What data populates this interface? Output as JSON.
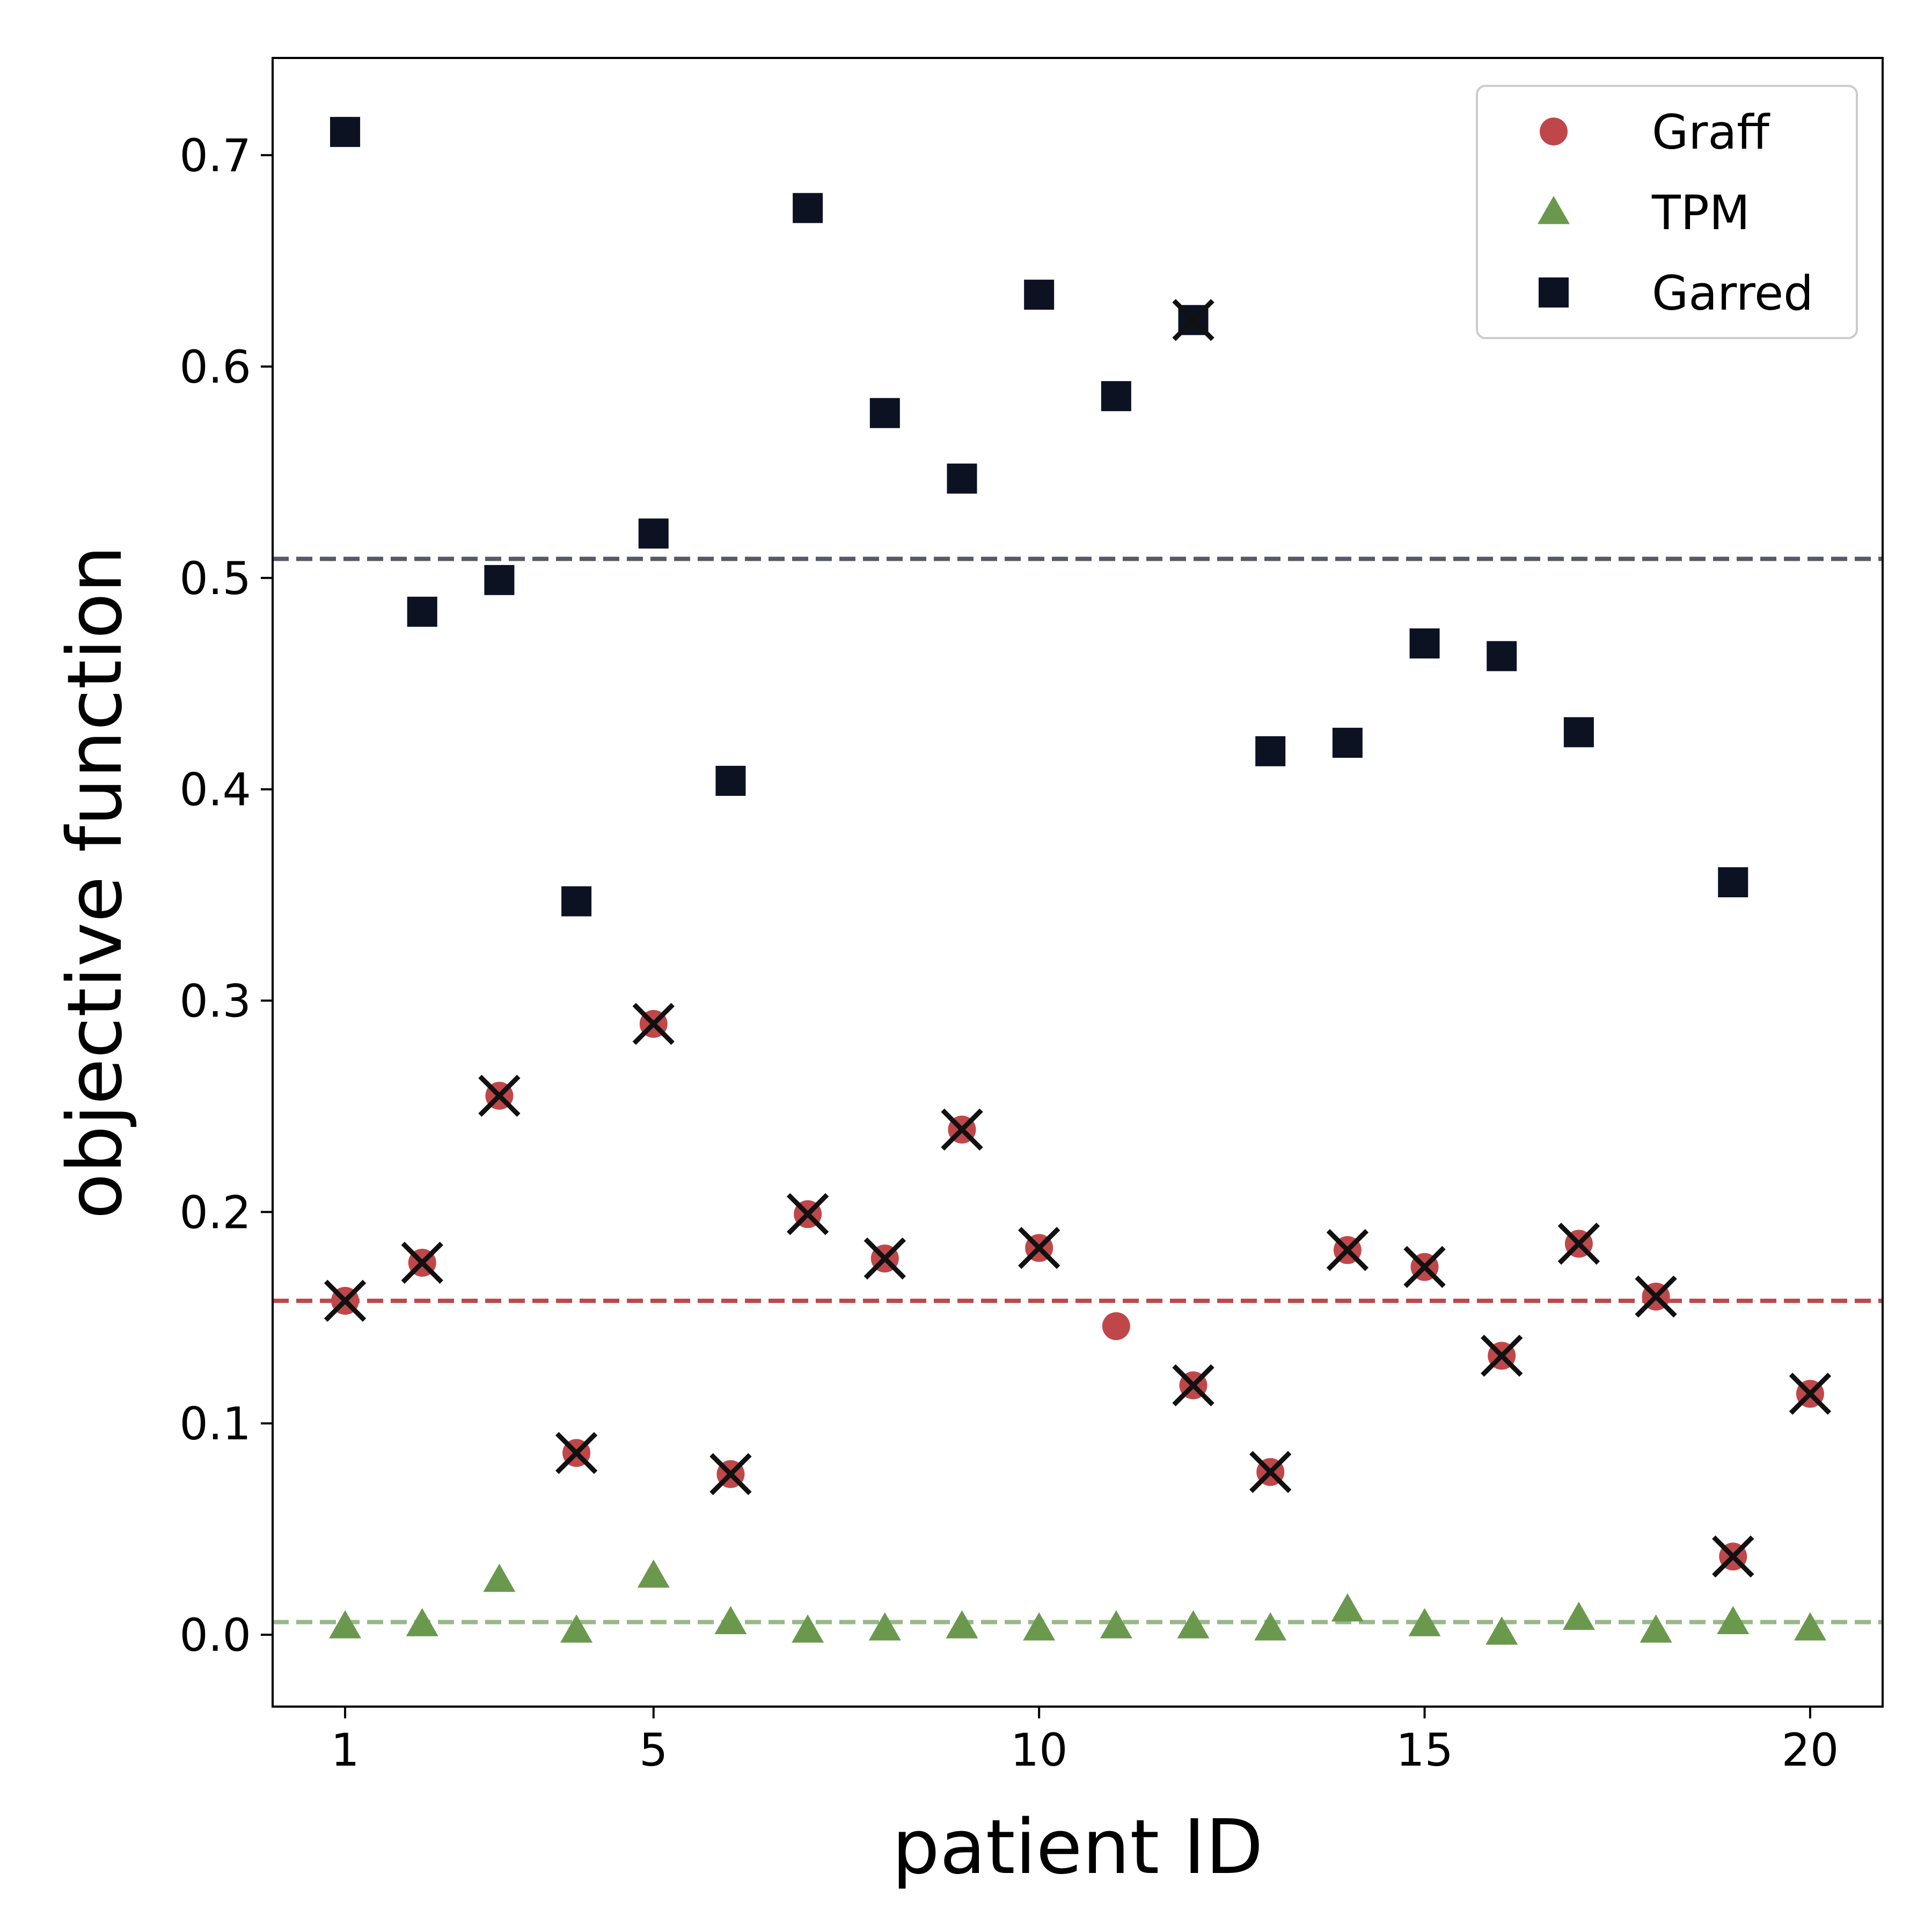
{
  "chart_data": {
    "type": "scatter",
    "title": "",
    "xlabel": "patient ID",
    "ylabel": "objective function",
    "xlim": [
      0.06,
      20.94
    ],
    "ylim": [
      -0.034,
      0.746
    ],
    "xticks": [
      1,
      5,
      10,
      15,
      20
    ],
    "yticks": [
      0.0,
      0.1,
      0.2,
      0.3,
      0.4,
      0.5,
      0.6,
      0.7
    ],
    "ytick_labels": [
      "0.0",
      "0.1",
      "0.2",
      "0.3",
      "0.4",
      "0.5",
      "0.6",
      "0.7"
    ],
    "grid": false,
    "legend_position": "top-right",
    "x": [
      1,
      2,
      3,
      4,
      5,
      6,
      7,
      8,
      9,
      10,
      11,
      12,
      13,
      14,
      15,
      16,
      17,
      18,
      19,
      20
    ],
    "series": [
      {
        "name": "Graff",
        "marker": "circle",
        "color": "#bf474a",
        "values": [
          0.158,
          0.176,
          0.255,
          0.086,
          0.289,
          0.076,
          0.199,
          0.178,
          0.239,
          0.183,
          0.146,
          0.118,
          0.077,
          0.182,
          0.174,
          0.132,
          0.185,
          0.16,
          0.037,
          0.114
        ]
      },
      {
        "name": "TPM",
        "marker": "triangle",
        "color": "#6a994e",
        "values": [
          0.004,
          0.005,
          0.026,
          0.002,
          0.028,
          0.006,
          0.002,
          0.003,
          0.004,
          0.003,
          0.004,
          0.004,
          0.003,
          0.012,
          0.005,
          0.001,
          0.008,
          0.002,
          0.006,
          0.003
        ]
      },
      {
        "name": "Garred",
        "marker": "square",
        "color": "#0c1222",
        "values": [
          0.711,
          0.484,
          0.499,
          0.347,
          0.521,
          0.404,
          0.675,
          0.578,
          0.547,
          0.634,
          0.586,
          0.622,
          0.418,
          0.422,
          0.469,
          0.463,
          0.427,
          null,
          0.356,
          null
        ]
      }
    ],
    "x_marked_points": [
      {
        "x": 1,
        "y": 0.158
      },
      {
        "x": 2,
        "y": 0.176
      },
      {
        "x": 3,
        "y": 0.255
      },
      {
        "x": 4,
        "y": 0.086
      },
      {
        "x": 5,
        "y": 0.289
      },
      {
        "x": 6,
        "y": 0.076
      },
      {
        "x": 7,
        "y": 0.199
      },
      {
        "x": 8,
        "y": 0.178
      },
      {
        "x": 9,
        "y": 0.239
      },
      {
        "x": 10,
        "y": 0.183
      },
      {
        "x": 12,
        "y": 0.118
      },
      {
        "x": 12,
        "y": 0.622
      },
      {
        "x": 13,
        "y": 0.077
      },
      {
        "x": 14,
        "y": 0.182
      },
      {
        "x": 15,
        "y": 0.174
      },
      {
        "x": 16,
        "y": 0.132
      },
      {
        "x": 17,
        "y": 0.185
      },
      {
        "x": 18,
        "y": 0.16
      },
      {
        "x": 19,
        "y": 0.037
      },
      {
        "x": 20,
        "y": 0.114
      }
    ],
    "mean_lines": [
      {
        "series": "Garred",
        "y": 0.509,
        "color": "#555a66"
      },
      {
        "series": "Graff",
        "y": 0.158,
        "color": "#bf474a"
      },
      {
        "series": "TPM",
        "y": 0.006,
        "color": "#98b888"
      }
    ]
  }
}
